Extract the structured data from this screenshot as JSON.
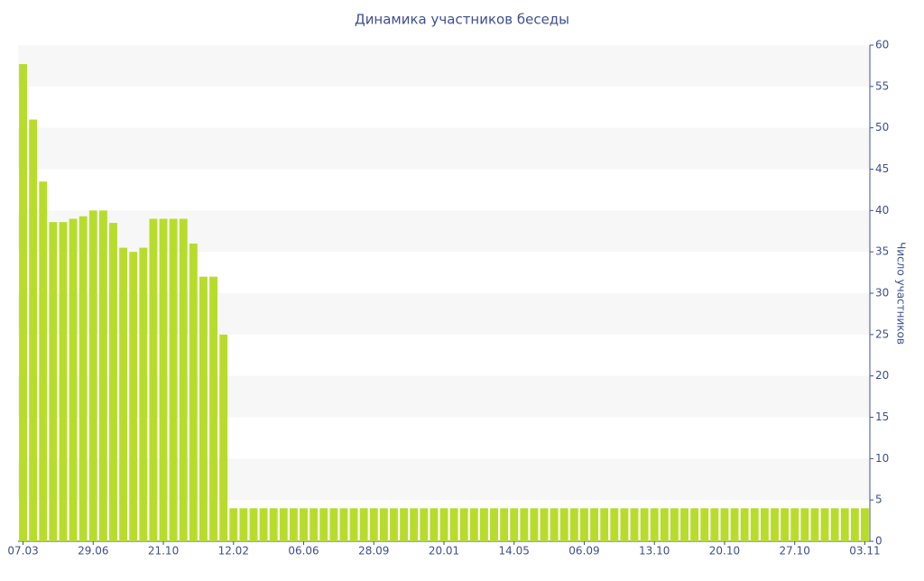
{
  "chart_data": {
    "type": "bar",
    "title": "Динамика участников беседы",
    "y_axis_label": "Число участников",
    "categories": [
      "07.03",
      null,
      null,
      null,
      null,
      null,
      null,
      "29.06",
      null,
      null,
      null,
      null,
      null,
      null,
      "21.10",
      null,
      null,
      null,
      null,
      null,
      null,
      "12.02",
      null,
      null,
      null,
      null,
      null,
      null,
      "06.06",
      null,
      null,
      null,
      null,
      null,
      null,
      "28.09",
      null,
      null,
      null,
      null,
      null,
      null,
      "20.01",
      null,
      null,
      null,
      null,
      null,
      null,
      "14.05",
      null,
      null,
      null,
      null,
      null,
      null,
      "06.09",
      null,
      null,
      null,
      null,
      null,
      null,
      "13.10",
      null,
      null,
      null,
      null,
      null,
      null,
      "20.10",
      null,
      null,
      null,
      null,
      null,
      null,
      "27.10",
      null,
      null,
      null,
      null,
      null,
      null,
      "03.11"
    ],
    "values": [
      57.7,
      51,
      43.5,
      38.6,
      38.6,
      39,
      39.3,
      40,
      40,
      38.5,
      35.5,
      35,
      35.5,
      39,
      39,
      39,
      39,
      36,
      32,
      32,
      25,
      4,
      4,
      4,
      4,
      4,
      4,
      4,
      4,
      4,
      4,
      4,
      4,
      4,
      4,
      4,
      4,
      4,
      4,
      4,
      4,
      4,
      4,
      4,
      4,
      4,
      4,
      4,
      4,
      4,
      4,
      4,
      4,
      4,
      4,
      4,
      4,
      4,
      4,
      4,
      4,
      4,
      4,
      4,
      4,
      4,
      4,
      4,
      4,
      4,
      4,
      4,
      4,
      4,
      4,
      4,
      4,
      4,
      4,
      4,
      4,
      4,
      4,
      4,
      4
    ],
    "color": "#b8dc2c",
    "ylim": [
      0,
      60
    ],
    "yticks": [
      0,
      5,
      10,
      15,
      20,
      25,
      30,
      35,
      40,
      45,
      50,
      55,
      60
    ],
    "grid": true
  }
}
